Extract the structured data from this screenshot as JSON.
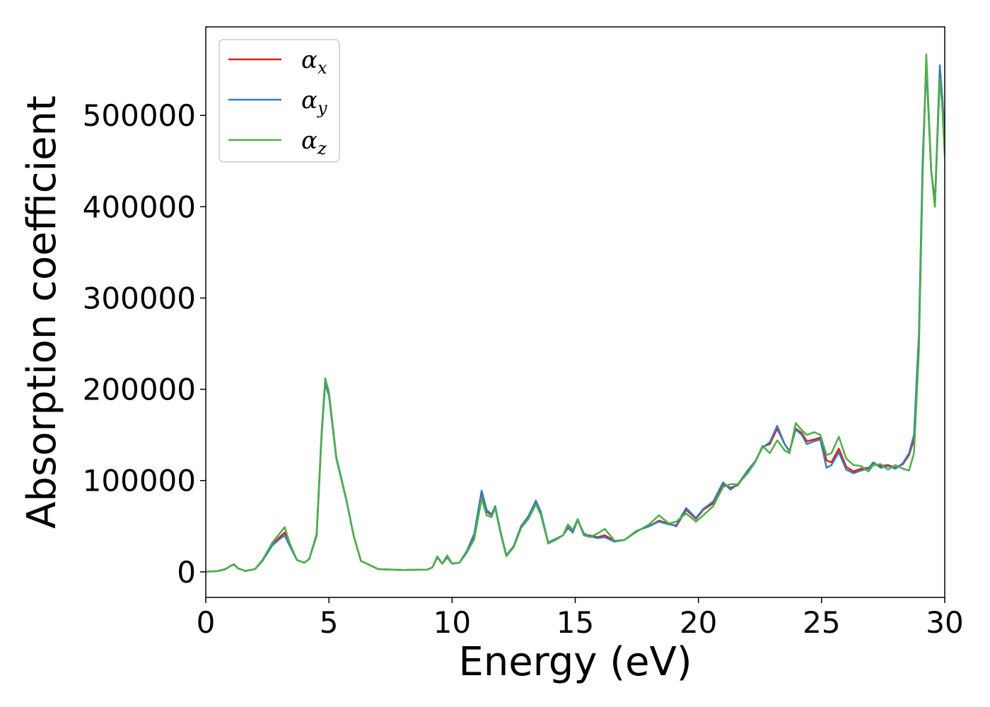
{
  "chart_data": {
    "type": "line",
    "xlabel": "Energy (eV)",
    "ylabel": "Absorption coefficient",
    "xlim": [
      0,
      30
    ],
    "ylim": [
      -28000,
      597000
    ],
    "xticks": [
      0,
      5,
      10,
      15,
      20,
      25,
      30
    ],
    "yticks": [
      0,
      100000,
      200000,
      300000,
      400000,
      500000
    ],
    "grid": false,
    "legend_position": "upper-left",
    "series": [
      {
        "name": "αx",
        "symbol": "α",
        "subscript": "x",
        "color": "#e41a1c",
        "x": [
          0,
          0.5,
          0.8,
          1.0,
          1.15,
          1.3,
          1.6,
          2.0,
          2.3,
          2.7,
          3.0,
          3.2,
          3.4,
          3.7,
          4.0,
          4.2,
          4.5,
          4.7,
          4.85,
          5.0,
          5.3,
          5.7,
          6.0,
          6.3,
          7.0,
          8.0,
          9.0,
          9.2,
          9.4,
          9.6,
          9.8,
          10.0,
          10.3,
          10.6,
          10.9,
          11.2,
          11.4,
          11.6,
          11.75,
          11.95,
          12.2,
          12.5,
          12.8,
          13.1,
          13.4,
          13.6,
          13.9,
          14.2,
          14.5,
          14.7,
          14.9,
          15.1,
          15.35,
          15.6,
          15.9,
          16.2,
          16.6,
          17.0,
          17.5,
          18.0,
          18.4,
          18.8,
          19.1,
          19.5,
          19.9,
          20.2,
          20.6,
          21.0,
          21.3,
          21.6,
          22.0,
          22.3,
          22.6,
          22.9,
          23.2,
          23.5,
          23.7,
          23.95,
          24.2,
          24.4,
          24.7,
          24.95,
          25.2,
          25.4,
          25.7,
          26.0,
          26.3,
          26.6,
          26.9,
          27.1,
          27.4,
          27.7,
          28.0,
          28.3,
          28.55,
          28.75,
          28.95,
          29.1,
          29.25,
          29.45,
          29.6,
          29.8,
          29.9,
          30.0
        ],
        "y": [
          0,
          1000,
          3000,
          6500,
          8000,
          4000,
          1000,
          3000,
          13000,
          30000,
          38000,
          43000,
          30000,
          13000,
          10000,
          14000,
          40000,
          150000,
          208000,
          195000,
          125000,
          80000,
          40000,
          12000,
          3000,
          2000,
          2500,
          5000,
          16000,
          9000,
          16000,
          9000,
          10000,
          22000,
          40000,
          87000,
          66000,
          62000,
          71000,
          45000,
          18000,
          28000,
          50000,
          60000,
          77000,
          65000,
          32000,
          36000,
          40000,
          48000,
          44000,
          57000,
          40000,
          40000,
          38000,
          40000,
          34000,
          35000,
          45000,
          50000,
          56000,
          53000,
          50000,
          68000,
          58000,
          68000,
          75000,
          96000,
          92000,
          95000,
          110000,
          120000,
          137000,
          140000,
          157000,
          140000,
          132000,
          157000,
          152000,
          143000,
          145000,
          147000,
          122000,
          120000,
          135000,
          115000,
          110000,
          113000,
          114000,
          118000,
          116000,
          117000,
          114000,
          118000,
          128000,
          145000,
          250000,
          440000,
          560000,
          440000,
          405000,
          545000,
          520000,
          460000
        ]
      },
      {
        "name": "αy",
        "symbol": "α",
        "subscript": "y",
        "color": "#377eb8",
        "x": [
          0,
          0.5,
          0.8,
          1.0,
          1.15,
          1.3,
          1.6,
          2.0,
          2.3,
          2.7,
          3.0,
          3.2,
          3.4,
          3.7,
          4.0,
          4.2,
          4.5,
          4.7,
          4.85,
          5.0,
          5.3,
          5.7,
          6.0,
          6.3,
          7.0,
          8.0,
          9.0,
          9.2,
          9.4,
          9.6,
          9.8,
          10.0,
          10.3,
          10.6,
          10.9,
          11.2,
          11.4,
          11.6,
          11.75,
          11.95,
          12.2,
          12.5,
          12.8,
          13.1,
          13.4,
          13.6,
          13.9,
          14.2,
          14.5,
          14.7,
          14.9,
          15.1,
          15.35,
          15.6,
          15.9,
          16.2,
          16.6,
          17.0,
          17.5,
          18.0,
          18.4,
          18.8,
          19.1,
          19.5,
          19.9,
          20.2,
          20.6,
          21.0,
          21.3,
          21.6,
          22.0,
          22.3,
          22.6,
          22.9,
          23.2,
          23.5,
          23.7,
          23.95,
          24.2,
          24.4,
          24.7,
          24.95,
          25.2,
          25.4,
          25.7,
          26.0,
          26.3,
          26.6,
          26.9,
          27.1,
          27.4,
          27.7,
          28.0,
          28.3,
          28.55,
          28.75,
          28.95,
          29.1,
          29.25,
          29.45,
          29.6,
          29.8,
          29.9,
          30.0
        ],
        "y": [
          0,
          1000,
          3000,
          6500,
          8000,
          4000,
          1000,
          3000,
          12000,
          29000,
          36000,
          40000,
          29000,
          13000,
          10000,
          14000,
          40000,
          148000,
          206000,
          193000,
          124000,
          79000,
          40000,
          12000,
          3000,
          2000,
          2500,
          5000,
          16000,
          9000,
          16000,
          9000,
          10000,
          23000,
          42000,
          89000,
          68000,
          63000,
          72000,
          46000,
          18000,
          28000,
          50000,
          61000,
          78000,
          66000,
          32000,
          36000,
          40000,
          49000,
          43000,
          57000,
          42000,
          39000,
          37000,
          38000,
          33000,
          35000,
          45000,
          50000,
          55000,
          52000,
          51000,
          70000,
          59000,
          69000,
          77000,
          98000,
          90000,
          96000,
          111000,
          121000,
          136000,
          142000,
          160000,
          140000,
          132000,
          156000,
          150000,
          140000,
          143000,
          145000,
          114000,
          117000,
          131000,
          112000,
          108000,
          111000,
          113000,
          120000,
          114000,
          116000,
          113000,
          119000,
          130000,
          150000,
          260000,
          450000,
          555000,
          440000,
          400000,
          555000,
          520000,
          480000
        ]
      },
      {
        "name": "αz",
        "symbol": "α",
        "subscript": "z",
        "color": "#4daf4a",
        "x": [
          0,
          0.5,
          0.8,
          1.0,
          1.15,
          1.3,
          1.6,
          2.0,
          2.3,
          2.7,
          3.0,
          3.2,
          3.4,
          3.7,
          4.0,
          4.2,
          4.5,
          4.7,
          4.85,
          5.0,
          5.3,
          5.7,
          6.0,
          6.3,
          7.0,
          8.0,
          9.0,
          9.2,
          9.4,
          9.6,
          9.8,
          10.0,
          10.3,
          10.6,
          10.9,
          11.2,
          11.4,
          11.6,
          11.75,
          11.95,
          12.2,
          12.5,
          12.8,
          13.1,
          13.4,
          13.6,
          13.9,
          14.2,
          14.5,
          14.7,
          14.9,
          15.1,
          15.35,
          15.6,
          15.9,
          16.2,
          16.6,
          17.0,
          17.5,
          18.0,
          18.4,
          18.8,
          19.1,
          19.5,
          19.9,
          20.2,
          20.6,
          21.0,
          21.3,
          21.6,
          22.0,
          22.3,
          22.6,
          22.9,
          23.2,
          23.5,
          23.7,
          23.95,
          24.2,
          24.4,
          24.7,
          24.95,
          25.2,
          25.4,
          25.7,
          26.0,
          26.3,
          26.6,
          26.9,
          27.1,
          27.4,
          27.7,
          28.0,
          28.3,
          28.55,
          28.75,
          28.95,
          29.1,
          29.25,
          29.45,
          29.6,
          29.8,
          29.9,
          30.0
        ],
        "y": [
          0,
          1000,
          3000,
          6500,
          8500,
          4000,
          1000,
          3000,
          13000,
          32000,
          42000,
          49000,
          32000,
          13000,
          10000,
          14000,
          42000,
          152000,
          212000,
          197000,
          126000,
          80000,
          40000,
          12000,
          3000,
          2000,
          2500,
          5000,
          17000,
          9000,
          18000,
          9000,
          10000,
          21000,
          36000,
          80000,
          62000,
          60000,
          70000,
          44000,
          17000,
          27000,
          48000,
          58000,
          74000,
          63000,
          31000,
          35000,
          40000,
          52000,
          46000,
          58000,
          40000,
          38000,
          42000,
          47000,
          34000,
          35000,
          44000,
          52000,
          62000,
          53000,
          55000,
          64000,
          55000,
          62000,
          72000,
          93000,
          96000,
          96000,
          108000,
          120000,
          138000,
          130000,
          144000,
          133000,
          130000,
          163000,
          155000,
          150000,
          153000,
          150000,
          128000,
          130000,
          148000,
          124000,
          117000,
          116000,
          110000,
          117000,
          118000,
          112000,
          117000,
          113000,
          111000,
          130000,
          240000,
          430000,
          567000,
          440000,
          400000,
          540000,
          510000,
          455000
        ]
      }
    ]
  }
}
